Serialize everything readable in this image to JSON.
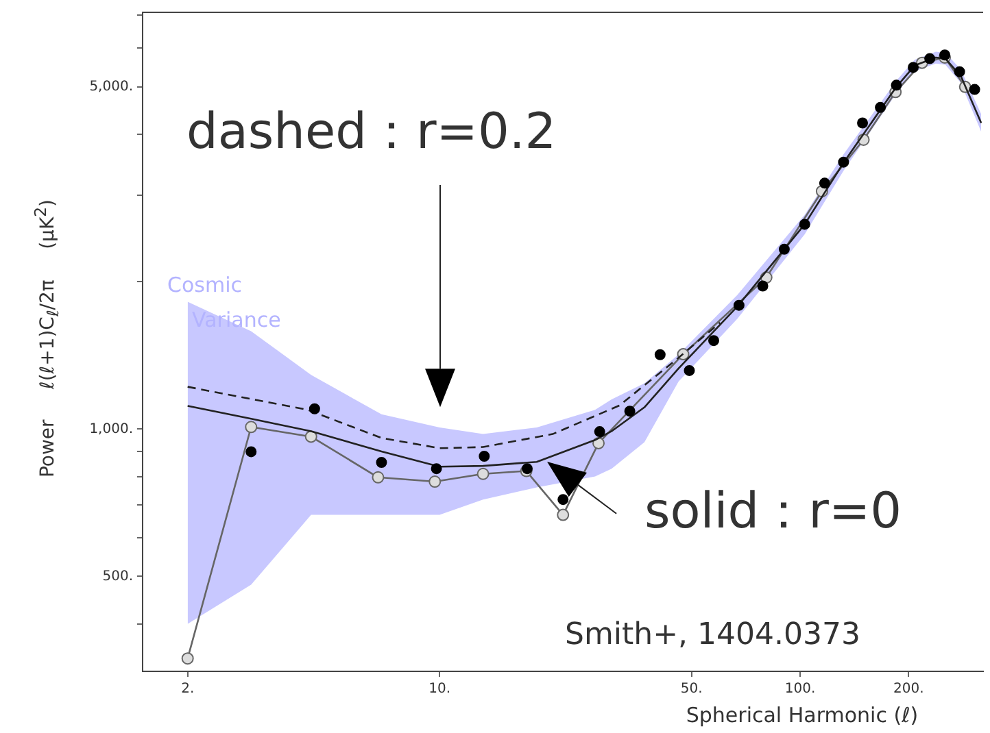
{
  "chart_data": {
    "type": "line",
    "xlabel": "Spherical Harmonic (ℓ)",
    "ylabel": "Power     ℓ(ℓ+1)C$_{ℓ}$/2π     (μK$^{2}$)",
    "xlim": [
      1.5,
      322
    ],
    "xticks": [
      {
        "value": 2,
        "label": "2."
      },
      {
        "value": 10,
        "label": "10."
      },
      {
        "value": 50,
        "label": "50."
      },
      {
        "value": 100,
        "label": "100."
      },
      {
        "value": 200,
        "label": "200."
      }
    ],
    "ylim": [
      320,
      7100
    ],
    "log": "xy",
    "yticks": [
      {
        "value": 400,
        "label": null
      },
      {
        "value": 500,
        "label": "500."
      },
      {
        "value": 600,
        "label": null
      },
      {
        "value": 700,
        "label": null
      },
      {
        "value": 800,
        "label": null
      },
      {
        "value": 900,
        "label": null
      },
      {
        "value": 1000,
        "label": "1,000."
      },
      {
        "value": 2000,
        "label": null
      },
      {
        "value": 3000,
        "label": null
      },
      {
        "value": 4000,
        "label": null
      },
      {
        "value": 5000,
        "label": "5,000."
      },
      {
        "value": 6000,
        "label": null
      },
      {
        "value": 7000,
        "label": null
      }
    ],
    "grid": false,
    "legend": false,
    "series": [
      {
        "type": "line",
        "color": "#222222",
        "line_style": "solid",
        "marker": "none",
        "x": [
          2,
          3,
          4.4,
          6.9,
          10,
          13.2,
          18.6,
          27,
          30,
          37,
          46,
          67,
          103,
          132,
          185,
          208,
          238,
          253,
          279,
          318
        ],
        "values": [
          1115,
          1050,
          990,
          900,
          838,
          841,
          857,
          950,
          990,
          1108,
          1330,
          1780,
          2620,
          3500,
          5000,
          5530,
          5740,
          5710,
          5270,
          4220
        ],
        "lower": [
          400,
          481,
          668,
          668,
          668,
          718,
          760,
          800,
          830,
          940,
          1250,
          1680,
          2500,
          3370,
          4850,
          5380,
          5580,
          5550,
          5100,
          4050
        ],
        "upper": [
          1820,
          1585,
          1290,
          1072,
          1008,
          977,
          1008,
          1095,
          1150,
          1240,
          1420,
          1880,
          2740,
          3640,
          5150,
          5680,
          5900,
          5870,
          5430,
          4400
        ]
      },
      {
        "type": "line",
        "color": "#222222",
        "line_style": "dashed",
        "marker": "none",
        "x": [
          2,
          4.3,
          6.9,
          10,
          13.2,
          20.6,
          31.5,
          45,
          60
        ],
        "values": [
          1220,
          1095,
          959,
          914,
          919,
          977,
          1117,
          1380,
          1650
        ]
      },
      {
        "type": "line",
        "color": "#666666",
        "line_style": "solid",
        "marker": "circle",
        "x": [
          2,
          3,
          4.4,
          6.75,
          9.7,
          13.2,
          17.4,
          22,
          27.6,
          47.4,
          80.6,
          115,
          150,
          184,
          218,
          252,
          287
        ],
        "values": [
          340,
          1010,
          965,
          797,
          781,
          810,
          821,
          668,
          936,
          1422,
          2040,
          3060,
          3900,
          4880,
          5600,
          5740,
          5000
        ]
      },
      {
        "type": "scatter",
        "color": "#000000",
        "marker": "circle",
        "x": [
          3,
          4.5,
          6.9,
          9.8,
          13.3,
          17.5,
          22,
          27.8,
          33.7,
          40.9,
          49.3,
          57.6,
          67.7,
          78.8,
          90.4,
          103,
          117,
          132,
          149,
          167,
          185,
          206,
          229,
          252,
          277,
          305
        ],
        "values": [
          899,
          1100,
          855,
          830,
          880,
          830,
          718,
          988,
          1088,
          1419,
          1317,
          1516,
          1790,
          1960,
          2330,
          2620,
          3180,
          3510,
          4220,
          4540,
          5040,
          5480,
          5710,
          5810,
          5370,
          4940
        ]
      }
    ],
    "annotations": [
      "dashed：r=0.2",
      "solid：r=0",
      "Cosmic\nVariance",
      "Smith+, 1404.0373"
    ]
  }
}
